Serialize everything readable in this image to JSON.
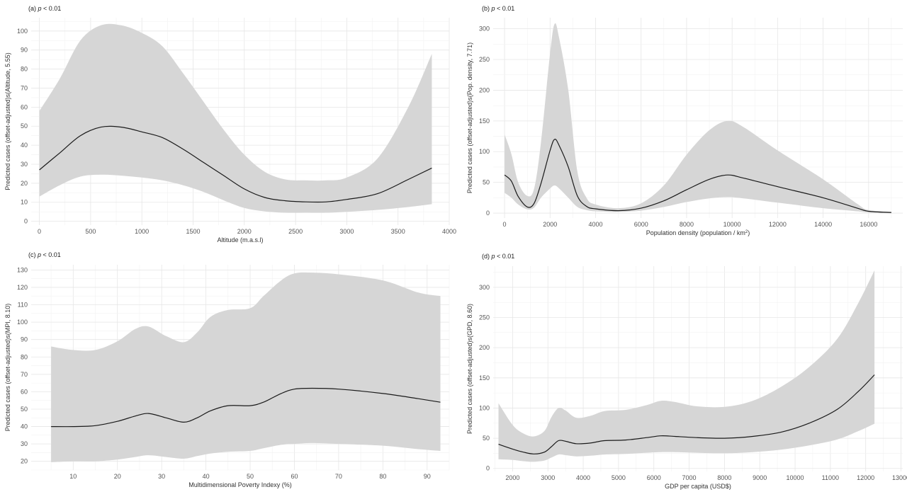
{
  "chart_data": [
    {
      "id": "a",
      "type": "line",
      "title_prefix": "(a)",
      "title_p": "p",
      "title_rest": " < 0.01",
      "xlabel": "Altitude (m.a.s.l)",
      "ylabel": "Predicted cases (offset-adjusted)s(Altitude, 5.55)",
      "xlim": [
        -80,
        4000
      ],
      "ylim": [
        -2,
        107
      ],
      "xticks": [
        0,
        500,
        1000,
        1500,
        2000,
        2500,
        3000,
        3500,
        4000
      ],
      "yticks": [
        0,
        10,
        20,
        30,
        40,
        50,
        60,
        70,
        80,
        90,
        100
      ],
      "grid": true,
      "series": [
        {
          "x": [
            0,
            200,
            400,
            600,
            800,
            1000,
            1200,
            1400,
            1600,
            1800,
            2000,
            2200,
            2400,
            2600,
            2800,
            3000,
            3300,
            3600,
            3830
          ],
          "fit": [
            27,
            36,
            45,
            49.5,
            49.5,
            47,
            44,
            38,
            31,
            24,
            17,
            12.5,
            10.8,
            10.2,
            10.2,
            11.5,
            14.5,
            22,
            28
          ],
          "upper": [
            58,
            75,
            95,
            103,
            103,
            99,
            92,
            78,
            63,
            48,
            35,
            26,
            22,
            21.5,
            21.5,
            23,
            33,
            60,
            88
          ],
          "lower": [
            13,
            19,
            23.5,
            24.5,
            24,
            23,
            21.5,
            19,
            15.5,
            11,
            7,
            5.2,
            4.5,
            4.5,
            4.5,
            5,
            6,
            7.5,
            9
          ]
        }
      ]
    },
    {
      "id": "b",
      "type": "line",
      "title_prefix": "(b)",
      "title_p": "p",
      "title_rest": " < 0.01",
      "xlabel": "Population density (population",
      "xlabel_unit": "km",
      "ylabel": "Predicted cases (offset-adjusted)s(Pop. density, 7.71)",
      "xlim": [
        -500,
        17500
      ],
      "ylim": [
        -8,
        318
      ],
      "xticks": [
        0,
        2000,
        4000,
        6000,
        8000,
        10000,
        12000,
        14000,
        16000
      ],
      "yticks": [
        0,
        50,
        100,
        150,
        200,
        250,
        300
      ],
      "grid": true,
      "series": [
        {
          "x": [
            0,
            300,
            600,
            1000,
            1300,
            1600,
            2000,
            2200,
            2400,
            2800,
            3200,
            3600,
            4000,
            5000,
            6000,
            7000,
            8000,
            9000,
            9800,
            10500,
            12000,
            14000,
            15500,
            16000,
            17000
          ],
          "fit": [
            62,
            52,
            27,
            10,
            16,
            48,
            102,
            120,
            110,
            75,
            28,
            11,
            7,
            4,
            8,
            20,
            38,
            55,
            62,
            57,
            43,
            25,
            8,
            3,
            1
          ],
          "upper": [
            128,
            96,
            50,
            28,
            40,
            115,
            260,
            308,
            285,
            200,
            68,
            25,
            14,
            8,
            16,
            45,
            95,
            135,
            150,
            140,
            102,
            55,
            15,
            5,
            2
          ],
          "lower": [
            33,
            25,
            14,
            6,
            9,
            25,
            40,
            45,
            40,
            25,
            10,
            5,
            3,
            2,
            4,
            10,
            18,
            24,
            26,
            24,
            17,
            8,
            3,
            1,
            0
          ]
        }
      ]
    },
    {
      "id": "c",
      "type": "line",
      "title_prefix": "(c)",
      "title_p": "p",
      "title_rest": " < 0.01",
      "xlabel": "Multidimensional Poverty Indexy (%)",
      "ylabel": "Predicted cases (offset-adjusted)s(MPI, 8.10)",
      "xlim": [
        0.5,
        95
      ],
      "ylim": [
        15,
        133
      ],
      "xticks": [
        10,
        20,
        30,
        40,
        50,
        60,
        70,
        80,
        90
      ],
      "yticks": [
        20,
        30,
        40,
        50,
        60,
        70,
        80,
        90,
        100,
        110,
        120,
        130
      ],
      "grid": true,
      "series": [
        {
          "x": [
            5,
            10,
            15,
            20,
            24,
            27,
            31,
            35,
            38,
            41,
            45,
            50,
            53,
            57,
            60,
            64,
            70,
            80,
            88,
            93
          ],
          "fit": [
            40,
            40,
            40.5,
            43,
            46,
            47.5,
            45,
            42.5,
            45,
            49,
            52,
            52,
            54,
            59,
            61.5,
            62,
            61.5,
            59,
            56,
            54
          ],
          "upper": [
            86,
            84,
            84,
            89,
            96,
            97.5,
            92,
            88.5,
            94,
            103,
            107,
            108,
            115,
            124,
            128,
            128.5,
            127.5,
            124,
            117,
            115
          ],
          "lower": [
            19.5,
            20,
            20,
            21,
            22.5,
            23.5,
            22.5,
            21.5,
            23,
            24.5,
            25.5,
            26,
            27.5,
            29.5,
            30,
            30.5,
            30,
            29,
            27,
            26
          ]
        }
      ]
    },
    {
      "id": "d",
      "type": "line",
      "title_prefix": "(d)",
      "title_p": "p",
      "title_rest": " < 0.01",
      "xlabel": "GDP per capita (USD$)",
      "ylabel": "Predicted cases (offset-adjusted)s(GPD, 8.60)",
      "xlim": [
        1450,
        13050
      ],
      "ylim": [
        -5,
        335
      ],
      "xticks": [
        2000,
        3000,
        4000,
        5000,
        6000,
        7000,
        8000,
        9000,
        10000,
        11000,
        12000,
        13000
      ],
      "yticks": [
        0,
        50,
        100,
        150,
        200,
        250,
        300
      ],
      "grid": true,
      "series": [
        {
          "x": [
            1600,
            2000,
            2300,
            2600,
            2900,
            3100,
            3300,
            3500,
            3800,
            4200,
            4600,
            5200,
            5800,
            6200,
            6600,
            7200,
            8000,
            8800,
            9600,
            10400,
            11200,
            11800,
            12250
          ],
          "fit": [
            40,
            32,
            27,
            24,
            27,
            36,
            46,
            45,
            41,
            42,
            46,
            47,
            51,
            54,
            53,
            51,
            50,
            53,
            60,
            75,
            98,
            128,
            155
          ],
          "upper": [
            108,
            72,
            58,
            53,
            62,
            85,
            100,
            96,
            84,
            87,
            95,
            97,
            105,
            112,
            110,
            103,
            102,
            112,
            135,
            168,
            215,
            275,
            328
          ],
          "lower": [
            15,
            14,
            12,
            11,
            13,
            18,
            23,
            22,
            20,
            21,
            23,
            24,
            26,
            27,
            27,
            26,
            25,
            27,
            31,
            38,
            48,
            62,
            74
          ]
        }
      ]
    }
  ]
}
